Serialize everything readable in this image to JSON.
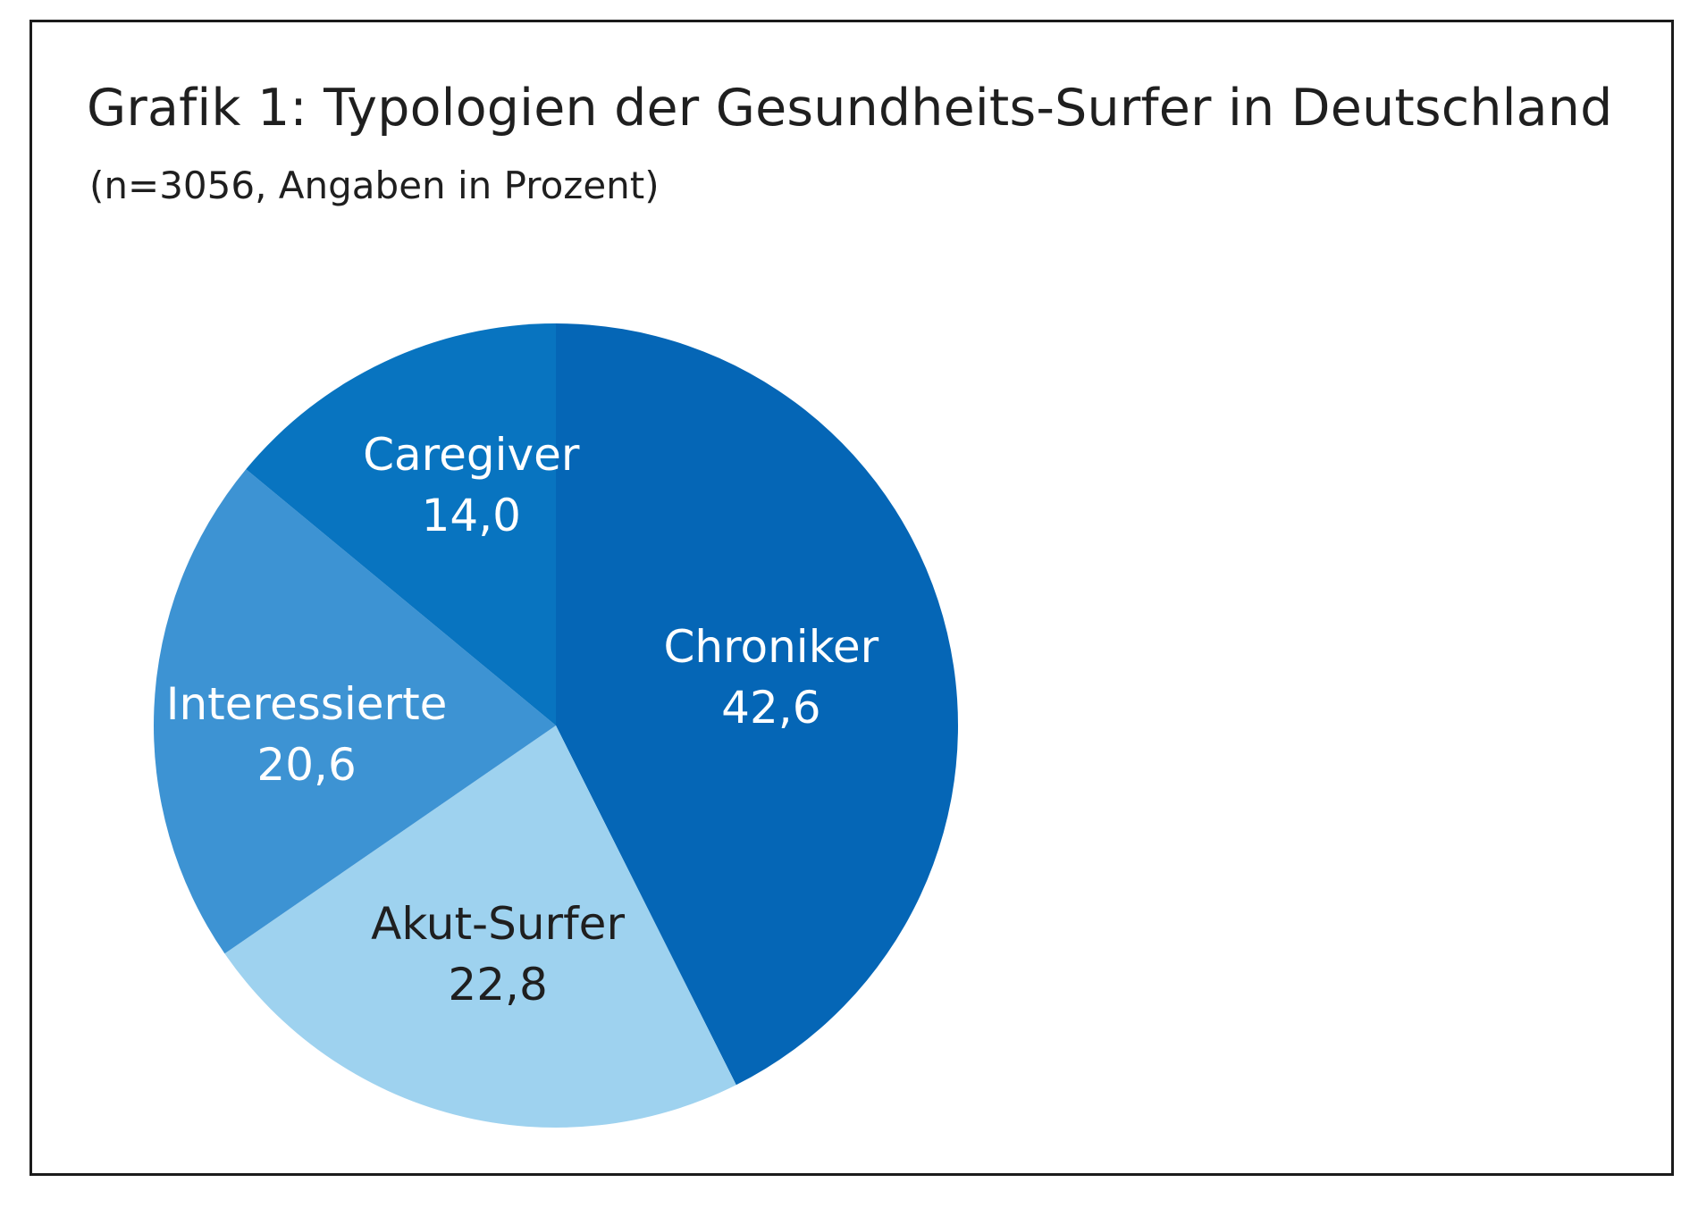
{
  "chart_data": {
    "type": "pie",
    "title": "Grafik 1: Typologien der Gesundheits-Surfer in Deutschland",
    "subtitle": "(n=3056, Angaben in Prozent)",
    "slices": [
      {
        "label": "Chroniker",
        "value": 42.6,
        "display": "42,6",
        "color": "#0566b6",
        "text_color": "#ffffff"
      },
      {
        "label": "Akut-Surfer",
        "value": 22.8,
        "display": "22,8",
        "color": "#9ed2ef",
        "text_color": "#1f1f1f"
      },
      {
        "label": "Interessierte",
        "value": 20.6,
        "display": "20,6",
        "color": "#3d93d3",
        "text_color": "#ffffff"
      },
      {
        "label": "Caregiver",
        "value": 14.0,
        "display": "14,0",
        "color": "#0874c0",
        "text_color": "#ffffff"
      }
    ]
  }
}
